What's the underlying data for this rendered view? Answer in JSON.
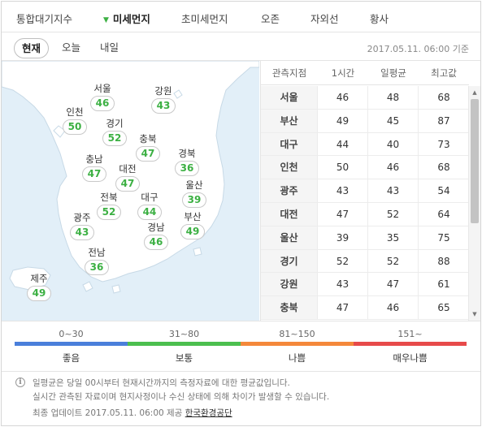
{
  "top_tabs": [
    {
      "label": "통합대기지수",
      "active": false
    },
    {
      "label": "미세먼지",
      "active": true
    },
    {
      "label": "초미세먼지",
      "active": false
    },
    {
      "label": "오존",
      "active": false
    },
    {
      "label": "자외선",
      "active": false
    },
    {
      "label": "황사",
      "active": false
    }
  ],
  "sub_tabs": [
    {
      "label": "현재",
      "active": true
    },
    {
      "label": "오늘",
      "active": false
    },
    {
      "label": "내일",
      "active": false
    }
  ],
  "timestamp": "2017.05.11. 06:00 기준",
  "map_markers": [
    {
      "city": "서울",
      "value": "46"
    },
    {
      "city": "강원",
      "value": "43"
    },
    {
      "city": "인천",
      "value": "50"
    },
    {
      "city": "경기",
      "value": "52"
    },
    {
      "city": "충북",
      "value": "47"
    },
    {
      "city": "충남",
      "value": "47"
    },
    {
      "city": "대전",
      "value": "47"
    },
    {
      "city": "경북",
      "value": "36"
    },
    {
      "city": "울산",
      "value": "39"
    },
    {
      "city": "전북",
      "value": "52"
    },
    {
      "city": "대구",
      "value": "44"
    },
    {
      "city": "광주",
      "value": "43"
    },
    {
      "city": "경남",
      "value": "46"
    },
    {
      "city": "부산",
      "value": "49"
    },
    {
      "city": "전남",
      "value": "36"
    },
    {
      "city": "제주",
      "value": "49"
    }
  ],
  "table": {
    "headers": [
      "관측지점",
      "1시간",
      "일평균",
      "최고값"
    ],
    "rows": [
      {
        "city": "서울",
        "hour": "46",
        "avg": "48",
        "max": "68"
      },
      {
        "city": "부산",
        "hour": "49",
        "avg": "45",
        "max": "87"
      },
      {
        "city": "대구",
        "hour": "44",
        "avg": "40",
        "max": "73"
      },
      {
        "city": "인천",
        "hour": "50",
        "avg": "46",
        "max": "68"
      },
      {
        "city": "광주",
        "hour": "43",
        "avg": "43",
        "max": "54"
      },
      {
        "city": "대전",
        "hour": "47",
        "avg": "52",
        "max": "64"
      },
      {
        "city": "울산",
        "hour": "39",
        "avg": "35",
        "max": "75"
      },
      {
        "city": "경기",
        "hour": "52",
        "avg": "52",
        "max": "88"
      },
      {
        "city": "강원",
        "hour": "43",
        "avg": "47",
        "max": "61"
      },
      {
        "city": "충북",
        "hour": "47",
        "avg": "46",
        "max": "65"
      }
    ]
  },
  "legend": [
    {
      "range": "0~30",
      "label": "좋음",
      "color": "#4a7fdb"
    },
    {
      "range": "31~80",
      "label": "보통",
      "color": "#4cbf4f"
    },
    {
      "range": "81~150",
      "label": "나쁨",
      "color": "#f4883a"
    },
    {
      "range": "151~",
      "label": "매우나쁨",
      "color": "#e74a4a"
    }
  ],
  "notes": [
    "일평균은 당일 00시부터 현재시간까지의 측정자료에 대한 평균값입니다.",
    "실시간 관측된 자료이며 현지사정이나 수신 상태에 의해 차이가 발생할 수 있습니다."
  ],
  "footer": {
    "text": "최종 업데이트 2017.05.11. 06:00 제공",
    "source": "한국환경공단"
  },
  "colors": {
    "value_green": "#3cb043",
    "map_sea": "#e2eff8",
    "map_land": "#ffffff"
  }
}
